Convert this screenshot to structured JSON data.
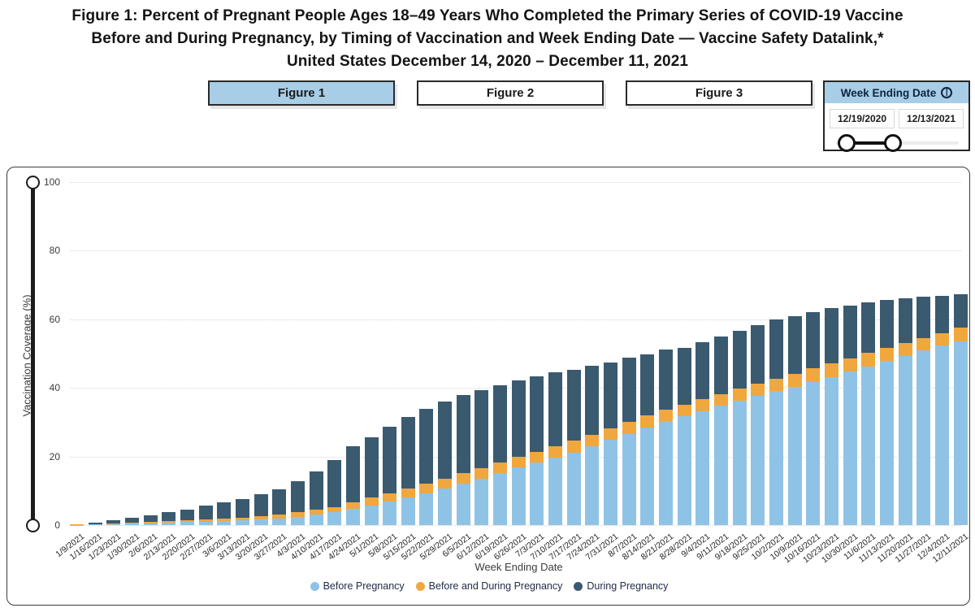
{
  "title": {
    "line1": "Figure 1: Percent of Pregnant People Ages 18–49 Years Who Completed the Primary Series of COVID-19 Vaccine",
    "line2": "Before and During Pregnancy, by Timing of Vaccination and Week Ending Date — Vaccine Safety Datalink,*",
    "line3": "United States December 14, 2020 – December 11, 2021"
  },
  "figure_tabs": [
    {
      "label": "Figure 1",
      "active": true
    },
    {
      "label": "Figure 2",
      "active": false
    },
    {
      "label": "Figure 3",
      "active": false
    }
  ],
  "filter_panel": {
    "title": "Week Ending Date",
    "info_icon_glyph": "|",
    "start_date": "12/19/2020",
    "end_date": "12/13/2021"
  },
  "colors": {
    "accent_blue": "#a8cde6",
    "bar_before": "#8fc3e6",
    "bar_both": "#f0a73e",
    "bar_during": "#3a5a70",
    "legend_text": "#212c49"
  },
  "chart_data": {
    "type": "bar",
    "stacked": true,
    "xlabel": "Week Ending Date",
    "ylabel": "Vaccination Coverage (%)",
    "ylim": [
      0,
      100
    ],
    "yticks": [
      0,
      20,
      40,
      60,
      80,
      100
    ],
    "grid": "horizontal-dotted",
    "legend_position": "bottom",
    "categories": [
      "1/9/2021",
      "1/16/2021",
      "1/23/2021",
      "1/30/2021",
      "2/6/2021",
      "2/13/2021",
      "2/20/2021",
      "2/27/2021",
      "3/6/2021",
      "3/13/2021",
      "3/20/2021",
      "3/27/2021",
      "4/3/2021",
      "4/10/2021",
      "4/17/2021",
      "4/24/2021",
      "5/1/2021",
      "5/8/2021",
      "5/15/2021",
      "5/22/2021",
      "5/29/2021",
      "6/5/2021",
      "6/12/2021",
      "6/19/2021",
      "6/26/2021",
      "7/3/2021",
      "7/10/2021",
      "7/17/2021",
      "7/24/2021",
      "7/31/2021",
      "8/7/2021",
      "8/14/2021",
      "8/21/2021",
      "8/28/2021",
      "9/4/2021",
      "9/11/2021",
      "9/18/2021",
      "9/25/2021",
      "10/2/2021",
      "10/9/2021",
      "10/16/2021",
      "10/23/2021",
      "10/30/2021",
      "11/6/2021",
      "11/13/2021",
      "11/20/2021",
      "11/27/2021",
      "12/4/2021",
      "12/11/2021"
    ],
    "series": [
      {
        "name": "Before Pregnancy",
        "color": "#8fc3e6",
        "values": [
          0.1,
          0.2,
          0.3,
          0.4,
          0.6,
          0.7,
          0.9,
          1.0,
          1.2,
          1.4,
          1.6,
          2.0,
          2.4,
          3.0,
          3.7,
          4.7,
          5.8,
          6.9,
          8.0,
          9.2,
          10.6,
          12.1,
          13.6,
          15.2,
          16.8,
          18.3,
          19.7,
          21.2,
          23.0,
          24.8,
          26.6,
          28.5,
          30.3,
          31.8,
          33.3,
          34.8,
          36.2,
          37.6,
          39.0,
          40.4,
          41.8,
          43.2,
          44.7,
          46.2,
          47.8,
          49.4,
          50.9,
          52.3,
          53.6
        ]
      },
      {
        "name": "Before and During Pregnancy",
        "color": "#f0a73e",
        "values": [
          0.1,
          0.1,
          0.2,
          0.3,
          0.3,
          0.4,
          0.5,
          0.6,
          0.7,
          0.8,
          1.0,
          1.1,
          1.3,
          1.4,
          1.6,
          1.9,
          2.2,
          2.4,
          2.6,
          2.8,
          2.9,
          3.0,
          3.1,
          3.0,
          3.0,
          3.1,
          3.3,
          3.4,
          3.4,
          3.4,
          3.4,
          3.4,
          3.3,
          3.4,
          3.4,
          3.4,
          3.5,
          3.6,
          3.7,
          3.8,
          3.9,
          4.0,
          4.0,
          4.0,
          3.9,
          3.8,
          3.7,
          3.7,
          4.0
        ]
      },
      {
        "name": "During Pregnancy",
        "color": "#3a5a70",
        "values": [
          0.1,
          0.5,
          0.9,
          1.4,
          2.0,
          2.6,
          3.2,
          4.0,
          4.7,
          5.5,
          6.3,
          7.4,
          9.1,
          11.2,
          13.6,
          16.3,
          17.7,
          19.5,
          20.9,
          22.0,
          22.5,
          22.7,
          22.6,
          22.5,
          22.4,
          22.0,
          21.5,
          20.7,
          20.0,
          19.1,
          18.8,
          17.8,
          17.6,
          16.5,
          16.6,
          16.9,
          17.0,
          17.2,
          17.3,
          16.8,
          16.4,
          16.0,
          15.3,
          14.8,
          13.9,
          13.0,
          12.0,
          10.9,
          9.7
        ]
      }
    ]
  }
}
